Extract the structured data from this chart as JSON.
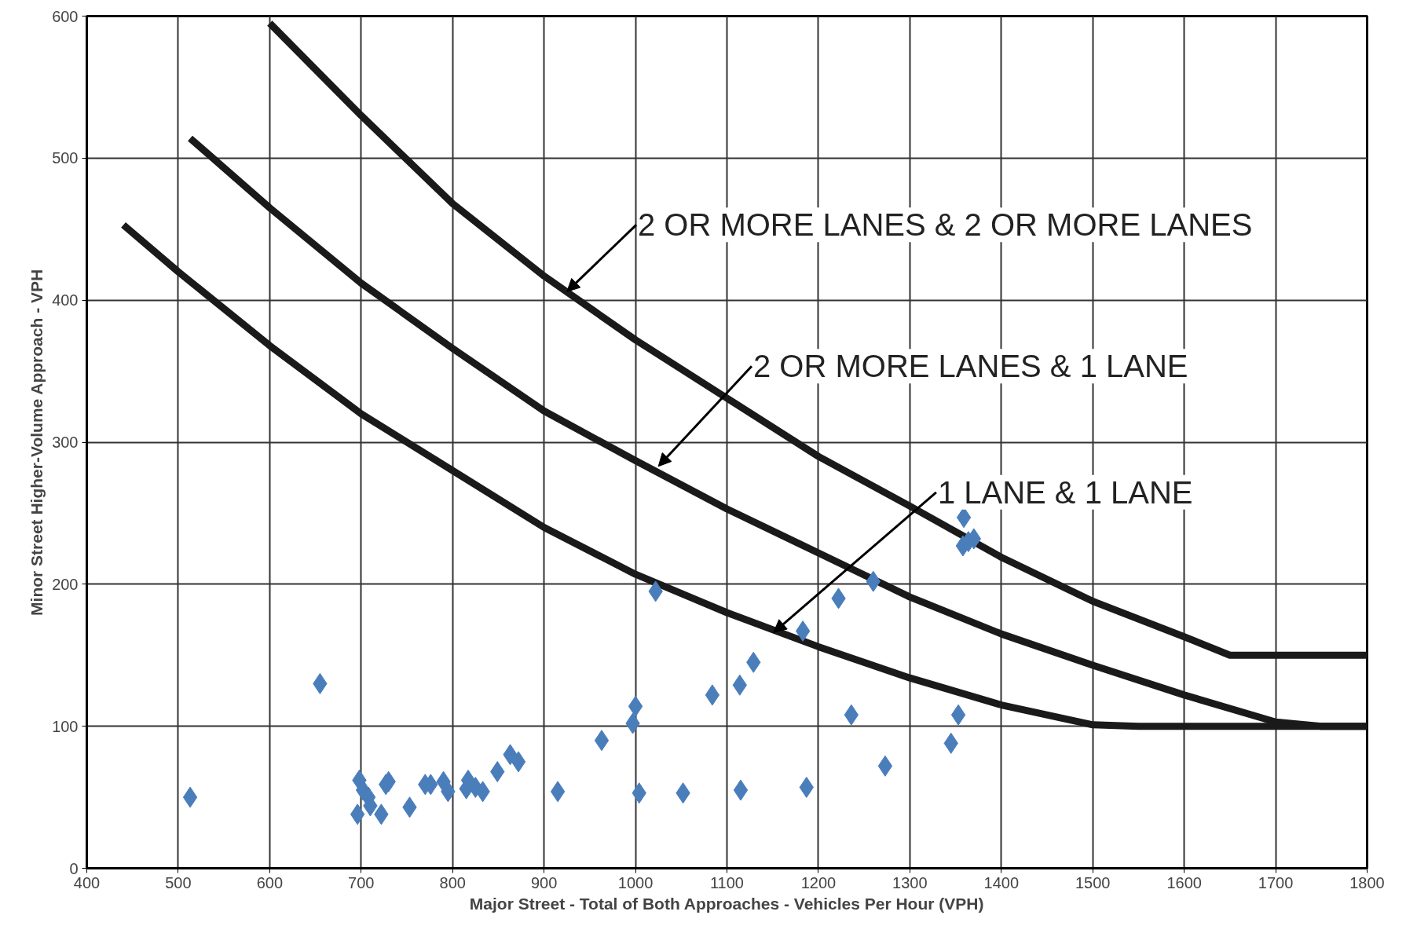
{
  "chart_data": {
    "type": "scatter",
    "xlabel": "Major Street - Total of Both Approaches - Vehicles Per Hour (VPH)",
    "ylabel": "Minor Street Higher-Volume Approach - VPH",
    "xlim": [
      400,
      1800
    ],
    "xticks": [
      400,
      500,
      600,
      700,
      800,
      900,
      1000,
      1100,
      1200,
      1300,
      1400,
      1500,
      1600,
      1700,
      1800
    ],
    "ylim": [
      0,
      600
    ],
    "yticks": [
      0,
      100,
      200,
      300,
      400,
      500,
      600
    ],
    "grid": true,
    "marker": "diamond",
    "x": [
      513,
      655,
      698,
      702,
      708,
      710,
      696,
      722,
      727,
      730,
      753,
      770,
      776,
      790,
      795,
      817,
      815,
      825,
      833,
      849,
      863,
      872,
      915,
      963,
      1000,
      997,
      1004,
      1022,
      1052,
      1084,
      1115,
      1114,
      1129,
      1183,
      1187,
      1222,
      1236,
      1260,
      1273,
      1345,
      1353,
      1359,
      1358,
      1370,
      1364
    ],
    "series": [
      {
        "color": "#4a7ebb",
        "values": [
          50,
          130,
          62,
          55,
          50,
          44,
          38,
          38,
          59,
          61,
          43,
          59,
          59,
          61,
          54,
          62,
          56,
          57,
          54,
          68,
          80,
          75,
          54,
          90,
          114,
          102,
          53,
          195,
          53,
          122,
          55,
          129,
          145,
          167,
          57,
          190,
          108,
          202,
          72,
          88,
          108,
          247,
          227,
          232,
          230
        ]
      },
      {
        "type": "line",
        "color": "#1a1a1a",
        "marker": "none",
        "x": [
          600,
          700,
          800,
          900,
          1000,
          1100,
          1200,
          1300,
          1400,
          1500,
          1600,
          1650,
          1800
        ],
        "values": [
          595,
          530,
          468,
          417,
          372,
          331,
          290,
          255,
          219,
          188,
          163,
          150,
          150
        ]
      },
      {
        "type": "line",
        "color": "#1a1a1a",
        "marker": "none",
        "x": [
          513,
          600,
          700,
          800,
          900,
          1000,
          1100,
          1200,
          1300,
          1400,
          1500,
          1600,
          1700,
          1750,
          1800
        ],
        "values": [
          514,
          465,
          412,
          366,
          322,
          287,
          253,
          222,
          191,
          165,
          143,
          122,
          103,
          100,
          100
        ]
      },
      {
        "type": "line",
        "color": "#1a1a1a",
        "marker": "none",
        "x": [
          440,
          500,
          600,
          700,
          800,
          900,
          1000,
          1100,
          1200,
          1300,
          1400,
          1500,
          1550,
          1800
        ],
        "values": [
          453,
          420,
          368,
          320,
          280,
          240,
          207,
          180,
          156,
          134,
          115,
          101,
          100,
          100
        ]
      }
    ],
    "annotations": [
      {
        "text": "2 OR MORE LANES & 2 OR MORE LANES",
        "x": 925,
        "y": 406
      },
      {
        "text": "2 OR MORE LANES & 1 LANE",
        "x": 1025,
        "y": 283
      },
      {
        "text": "1 LANE & 1 LANE",
        "x": 1151,
        "y": 166
      }
    ]
  }
}
